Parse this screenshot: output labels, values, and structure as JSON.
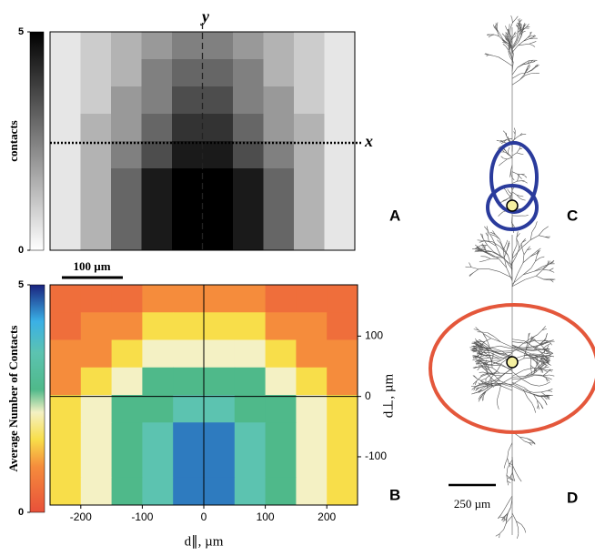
{
  "chart_data": [
    {
      "type": "heatmap",
      "colorbar_label": "contacts",
      "zlim": [
        0,
        5
      ],
      "colorbar_ticks": [
        0,
        5
      ],
      "colormap": [
        {
          "value": 0,
          "color": "#ffffff"
        },
        {
          "value": 5,
          "color": "#000000"
        }
      ],
      "vertical_line_label": "y",
      "horizontal_line_label": "x",
      "scale_bar": "100 µm",
      "z": [
        [
          0.5,
          1,
          1.5,
          2,
          2.5,
          2.5,
          2,
          1.5,
          1,
          0.5
        ],
        [
          0.5,
          1,
          1.5,
          2.5,
          3,
          3,
          2.5,
          1.5,
          1,
          0.5
        ],
        [
          0.5,
          1,
          2,
          2.5,
          3.5,
          3.5,
          2.5,
          2,
          1,
          0.5
        ],
        [
          0.5,
          1.5,
          2,
          3,
          4,
          4,
          3,
          2,
          1.5,
          0.5
        ],
        [
          0.5,
          1.5,
          2.5,
          3.5,
          4.5,
          4.5,
          3.5,
          2.5,
          1.5,
          0.5
        ],
        [
          0.5,
          1.5,
          3,
          4.5,
          5,
          5,
          4.5,
          3,
          1.5,
          0.5
        ],
        [
          0.5,
          1.5,
          3,
          4.5,
          5,
          5,
          4.5,
          3,
          1.5,
          0.5
        ],
        [
          0.5,
          1.5,
          3,
          4.5,
          5,
          5,
          4.5,
          3,
          1.5,
          0.5
        ]
      ]
    },
    {
      "type": "heatmap",
      "xlabel": "d∥, µm",
      "ylabel": "d⊥, µm",
      "colorbar_label": "Average Number of Contacts",
      "xlim": [
        -250,
        250
      ],
      "ylim": [
        -180,
        185
      ],
      "xticks": [
        -200,
        -100,
        0,
        100,
        200
      ],
      "yticks": [
        -100,
        0,
        100
      ],
      "zlim": [
        0,
        5
      ],
      "colorbar_ticks": [
        0,
        5
      ],
      "colormap": [
        {
          "value": 0,
          "color": "#e8503a"
        },
        {
          "value": 1,
          "color": "#f58c3c"
        },
        {
          "value": 1.6,
          "color": "#f8de4a"
        },
        {
          "value": 2.2,
          "color": "#f4f1c4"
        },
        {
          "value": 2.7,
          "color": "#4fb98a"
        },
        {
          "value": 3.5,
          "color": "#5cc3b0"
        },
        {
          "value": 4.2,
          "color": "#3ab0e6"
        },
        {
          "value": 5,
          "color": "#1a237e"
        }
      ],
      "z": [
        [
          0.5,
          0.5,
          0.5,
          1.0,
          1.0,
          1.0,
          1.0,
          0.5,
          0.5,
          0.5
        ],
        [
          0.5,
          1.0,
          1.0,
          1.6,
          1.6,
          1.6,
          1.6,
          1.0,
          1.0,
          0.5
        ],
        [
          1.0,
          1.0,
          1.6,
          2.2,
          2.2,
          2.2,
          2.2,
          1.6,
          1.0,
          1.0
        ],
        [
          1.0,
          1.6,
          2.2,
          2.7,
          2.7,
          2.7,
          2.7,
          2.2,
          1.6,
          1.0
        ],
        [
          1.6,
          2.2,
          2.7,
          2.7,
          3.5,
          3.5,
          2.7,
          2.7,
          2.2,
          1.6
        ],
        [
          1.6,
          2.2,
          2.7,
          3.5,
          4.5,
          4.5,
          3.5,
          2.7,
          2.2,
          1.6
        ],
        [
          1.6,
          2.2,
          2.7,
          3.5,
          4.5,
          4.5,
          3.5,
          2.7,
          2.2,
          1.6
        ],
        [
          1.6,
          2.2,
          2.7,
          3.5,
          4.5,
          4.5,
          3.5,
          2.7,
          2.2,
          1.6
        ]
      ]
    }
  ],
  "panel_labels": [
    "A",
    "B",
    "C",
    "D"
  ],
  "scale_bar_cd": "250 µm"
}
